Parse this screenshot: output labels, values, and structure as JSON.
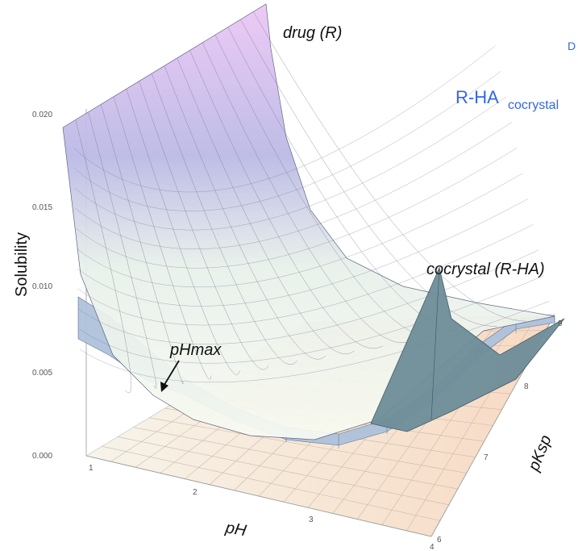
{
  "chart_data": {
    "type": "surface",
    "title": "",
    "axes": {
      "x": {
        "label": "pH",
        "range": [
          1,
          4
        ],
        "ticks": [
          "1",
          "2",
          "3",
          "4"
        ]
      },
      "y": {
        "label": "pKsp",
        "range": [
          6,
          9
        ],
        "ticks": [
          "6",
          "7",
          "8",
          "9"
        ]
      },
      "z": {
        "label": "Solubility",
        "range": [
          0,
          0.02
        ],
        "ticks": [
          "0.000",
          "0.005",
          "0.010",
          "0.015",
          "0.020"
        ]
      }
    },
    "series": [
      {
        "name": "drug (R)",
        "description_values": {
          "S_at_pH1": 0.0195,
          "S_at_pH4": 0.0024,
          "min_near_pH": 3.6
        }
      },
      {
        "name": "cocrystal (R-HA)",
        "description_values": {
          "S_at_pH1": 0.0085,
          "min": 0.0033,
          "peak": 0.0112,
          "peak_at": [
            4,
            9
          ]
        }
      }
    ],
    "annotations": [
      "drug (R)",
      "cocrystal (R-HA)",
      "pHmax"
    ],
    "legend": {
      "items": [
        "D",
        "R-HA",
        "cocrystal"
      ],
      "color": "#3366e0"
    }
  },
  "colors": {
    "drug_top": "#e9c4f4",
    "drug_mid": "#b8b8e4",
    "drug_low": "#f4f8ea",
    "cocrystal": "#a8bfd8",
    "cocrystal_peak": "#6f8f99",
    "floor": "#f6dcc8"
  }
}
